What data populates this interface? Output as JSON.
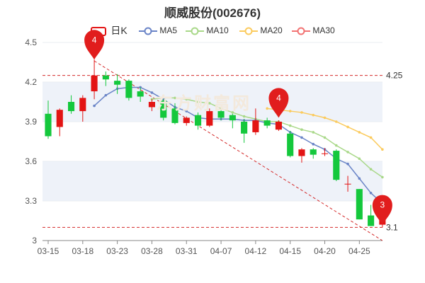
{
  "title": "顺威股份(002676)",
  "legend": [
    {
      "label": "日K",
      "kind": "candle"
    },
    {
      "label": "MA5",
      "color": "#6a84c7"
    },
    {
      "label": "MA10",
      "color": "#a9d889"
    },
    {
      "label": "MA20",
      "color": "#fbcb5e"
    },
    {
      "label": "MA30",
      "color": "#f27373"
    }
  ],
  "watermark": "东方财富网",
  "colors": {
    "up": "#e31414",
    "down": "#14c83c",
    "grid": "#e8ecf2",
    "band": "#eef2f9",
    "axis": "#888888"
  },
  "chart_data": {
    "type": "candlestick",
    "title": "顺威股份(002676)",
    "ylim": [
      3.0,
      4.5
    ],
    "yticks": [
      "3",
      "3.3",
      "3.6",
      "3.9",
      "4.2",
      "4.5"
    ],
    "x_ticks": [
      {
        "index": 0,
        "label": "03-15"
      },
      {
        "index": 3,
        "label": "03-18"
      },
      {
        "index": 6,
        "label": "03-23"
      },
      {
        "index": 9,
        "label": "03-28"
      },
      {
        "index": 12,
        "label": "03-31"
      },
      {
        "index": 15,
        "label": "04-07"
      },
      {
        "index": 18,
        "label": "04-12"
      },
      {
        "index": 21,
        "label": "04-15"
      },
      {
        "index": 24,
        "label": "04-20"
      },
      {
        "index": 27,
        "label": "04-25"
      }
    ],
    "candles": [
      {
        "o": 3.96,
        "h": 4.06,
        "l": 3.77,
        "c": 3.79
      },
      {
        "o": 3.86,
        "h": 4.0,
        "l": 3.79,
        "c": 3.99
      },
      {
        "o": 4.05,
        "h": 4.1,
        "l": 3.96,
        "c": 3.98
      },
      {
        "o": 3.98,
        "h": 4.1,
        "l": 3.9,
        "c": 4.08
      },
      {
        "o": 4.13,
        "h": 4.37,
        "l": 4.07,
        "c": 4.25
      },
      {
        "o": 4.25,
        "h": 4.28,
        "l": 4.17,
        "c": 4.22
      },
      {
        "o": 4.21,
        "h": 4.26,
        "l": 4.11,
        "c": 4.18
      },
      {
        "o": 4.21,
        "h": 4.22,
        "l": 4.06,
        "c": 4.08
      },
      {
        "o": 4.13,
        "h": 4.16,
        "l": 4.05,
        "c": 4.09
      },
      {
        "o": 4.01,
        "h": 4.07,
        "l": 3.98,
        "c": 4.05
      },
      {
        "o": 4.06,
        "h": 4.07,
        "l": 3.91,
        "c": 3.93
      },
      {
        "o": 4.0,
        "h": 4.04,
        "l": 3.88,
        "c": 3.89
      },
      {
        "o": 3.89,
        "h": 3.94,
        "l": 3.87,
        "c": 3.93
      },
      {
        "o": 3.95,
        "h": 3.97,
        "l": 3.84,
        "c": 3.87
      },
      {
        "o": 3.87,
        "h": 4.0,
        "l": 3.86,
        "c": 3.98
      },
      {
        "o": 3.98,
        "h": 4.0,
        "l": 3.91,
        "c": 3.93
      },
      {
        "o": 3.95,
        "h": 3.96,
        "l": 3.85,
        "c": 3.91
      },
      {
        "o": 3.9,
        "h": 3.92,
        "l": 3.74,
        "c": 3.81
      },
      {
        "o": 3.82,
        "h": 4.0,
        "l": 3.8,
        "c": 3.91
      },
      {
        "o": 3.91,
        "h": 3.93,
        "l": 3.85,
        "c": 3.87
      },
      {
        "o": 3.84,
        "h": 3.91,
        "l": 3.83,
        "c": 3.9
      },
      {
        "o": 3.81,
        "h": 3.83,
        "l": 3.63,
        "c": 3.64
      },
      {
        "o": 3.64,
        "h": 3.7,
        "l": 3.59,
        "c": 3.69
      },
      {
        "o": 3.69,
        "h": 3.7,
        "l": 3.62,
        "c": 3.65
      },
      {
        "o": 3.66,
        "h": 3.7,
        "l": 3.64,
        "c": 3.66
      },
      {
        "o": 3.68,
        "h": 3.69,
        "l": 3.45,
        "c": 3.46
      },
      {
        "o": 3.43,
        "h": 3.49,
        "l": 3.37,
        "c": 3.43
      },
      {
        "o": 3.39,
        "h": 3.39,
        "l": 3.16,
        "c": 3.16
      },
      {
        "o": 3.19,
        "h": 3.27,
        "l": 3.11,
        "c": 3.11
      },
      {
        "o": 3.12,
        "h": 3.28,
        "l": 3.1,
        "c": 3.28
      }
    ],
    "ma5": [
      null,
      null,
      null,
      null,
      4.02,
      4.1,
      4.15,
      4.16,
      4.16,
      4.12,
      4.07,
      4.01,
      3.98,
      3.93,
      3.92,
      3.92,
      3.92,
      3.91,
      3.91,
      3.89,
      3.88,
      3.82,
      3.78,
      3.73,
      3.69,
      3.62,
      3.58,
      3.47,
      3.36,
      3.28
    ],
    "ma10": [
      null,
      null,
      null,
      null,
      null,
      null,
      null,
      null,
      null,
      4.07,
      4.08,
      4.08,
      4.07,
      4.05,
      4.04,
      4.0,
      3.97,
      3.94,
      3.92,
      3.9,
      3.9,
      3.87,
      3.84,
      3.82,
      3.78,
      3.72,
      3.67,
      3.62,
      3.54,
      3.48
    ],
    "ma20": [
      null,
      null,
      null,
      null,
      null,
      null,
      null,
      null,
      null,
      null,
      null,
      null,
      null,
      null,
      null,
      null,
      null,
      null,
      null,
      4.0,
      3.99,
      3.98,
      3.97,
      3.95,
      3.93,
      3.9,
      3.86,
      3.82,
      3.78,
      3.69
    ],
    "ma30": [],
    "reference_lines": [
      {
        "value": 4.25,
        "label": "4.25",
        "style": "dashed"
      },
      {
        "value": 3.1,
        "label": "3.1",
        "style": "dashed"
      }
    ],
    "pins": [
      {
        "index": 4,
        "value": 4.37,
        "label": "4"
      },
      {
        "index": 20,
        "value": 3.93,
        "label": "4"
      },
      {
        "index": 29,
        "value": 3.12,
        "label": "3"
      }
    ],
    "trend_line": {
      "from_index": 4,
      "from_value": 4.36,
      "to_index": 29,
      "to_value": 3.0
    }
  }
}
